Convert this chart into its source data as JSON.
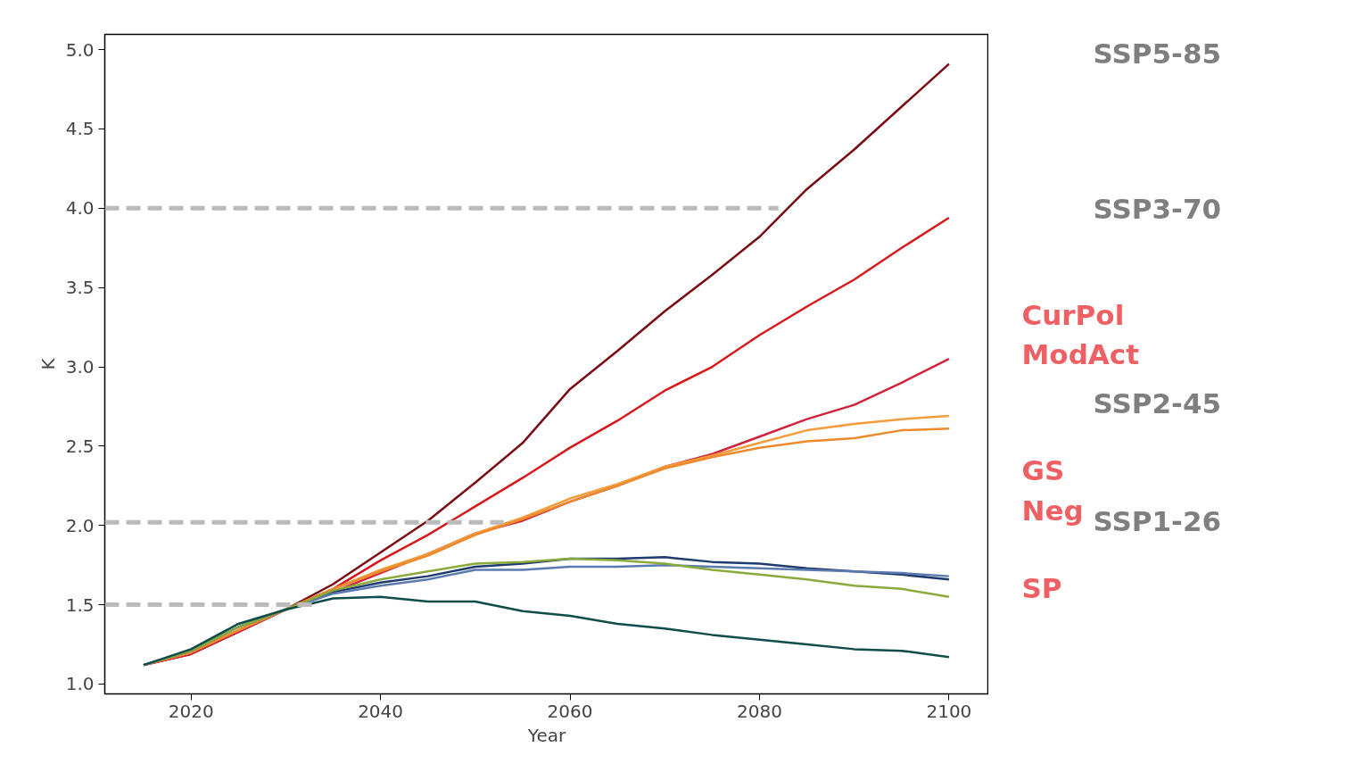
{
  "chart_data": {
    "type": "line",
    "xlabel": "Year",
    "ylabel": "K",
    "x": [
      2015,
      2020,
      2025,
      2030,
      2035,
      2040,
      2045,
      2050,
      2055,
      2060,
      2065,
      2070,
      2075,
      2080,
      2085,
      2090,
      2095,
      2100
    ],
    "series": [
      {
        "color": "#7a0c14",
        "values": [
          1.12,
          1.19,
          1.33,
          1.47,
          1.63,
          1.83,
          2.03,
          2.27,
          2.52,
          2.86,
          3.1,
          3.35,
          3.58,
          3.82,
          4.12,
          4.37,
          4.64,
          4.91
        ]
      },
      {
        "color": "#d7191c",
        "values": [
          1.12,
          1.19,
          1.33,
          1.47,
          1.6,
          1.78,
          1.94,
          2.12,
          2.3,
          2.49,
          2.66,
          2.85,
          3.0,
          3.2,
          3.38,
          3.55,
          3.75,
          3.94
        ]
      },
      {
        "color": "#d0243c",
        "values": [
          1.12,
          1.19,
          1.33,
          1.47,
          1.58,
          1.7,
          1.82,
          1.95,
          2.03,
          2.15,
          2.25,
          2.37,
          2.45,
          2.56,
          2.67,
          2.76,
          2.9,
          3.05
        ]
      },
      {
        "color": "#f39c3a",
        "values": [
          1.12,
          1.2,
          1.34,
          1.47,
          1.6,
          1.72,
          1.82,
          1.95,
          2.05,
          2.17,
          2.26,
          2.37,
          2.44,
          2.52,
          2.6,
          2.64,
          2.67,
          2.69
        ]
      },
      {
        "color": "#ee8a2e",
        "values": [
          1.12,
          1.2,
          1.34,
          1.47,
          1.6,
          1.71,
          1.81,
          1.94,
          2.04,
          2.15,
          2.25,
          2.36,
          2.43,
          2.49,
          2.53,
          2.55,
          2.6,
          2.61
        ]
      },
      {
        "color": "#1f3a6e",
        "values": [
          1.12,
          1.21,
          1.36,
          1.47,
          1.58,
          1.64,
          1.68,
          1.74,
          1.76,
          1.79,
          1.79,
          1.8,
          1.77,
          1.76,
          1.73,
          1.71,
          1.69,
          1.66
        ]
      },
      {
        "color": "#5b7bb0",
        "values": [
          1.12,
          1.21,
          1.36,
          1.47,
          1.57,
          1.62,
          1.66,
          1.72,
          1.72,
          1.74,
          1.74,
          1.75,
          1.74,
          1.73,
          1.72,
          1.71,
          1.7,
          1.68
        ]
      },
      {
        "color": "#8aab3c",
        "values": [
          1.12,
          1.21,
          1.36,
          1.47,
          1.59,
          1.66,
          1.71,
          1.76,
          1.77,
          1.79,
          1.78,
          1.76,
          1.72,
          1.69,
          1.66,
          1.62,
          1.6,
          1.55
        ]
      },
      {
        "color": "#0f4d4a",
        "values": [
          1.12,
          1.22,
          1.38,
          1.47,
          1.54,
          1.55,
          1.52,
          1.52,
          1.46,
          1.43,
          1.38,
          1.35,
          1.31,
          1.28,
          1.25,
          1.22,
          1.21,
          1.17
        ]
      },
      {
        "color": "#bbbbbb",
        "line_style": "dashed",
        "x": [
          2010.9,
          2082
        ],
        "values": [
          4.0,
          4.0
        ]
      },
      {
        "color": "#bbbbbb",
        "line_style": "dashed",
        "x": [
          2010.9,
          2053
        ],
        "values": [
          2.02,
          2.02
        ]
      },
      {
        "color": "#bbbbbb",
        "line_style": "dashed",
        "x": [
          2010.9,
          2033
        ],
        "values": [
          1.5,
          1.5
        ]
      }
    ],
    "xlim": [
      2010.9,
      2104.2
    ],
    "ylim": [
      0.938,
      5.096
    ],
    "xticks": [
      2020,
      2040,
      2060,
      2080,
      2100
    ],
    "yticks": [
      {
        "value": 1,
        "label": "1.0"
      },
      {
        "value": 1.5,
        "label": "1.5"
      },
      {
        "value": 2,
        "label": "2.0"
      },
      {
        "value": 2.5,
        "label": "2.5"
      },
      {
        "value": 3,
        "label": "3.0"
      },
      {
        "value": 3.5,
        "label": "3.5"
      },
      {
        "value": 4,
        "label": "4.0"
      },
      {
        "value": 4.5,
        "label": "4.5"
      },
      {
        "value": 5,
        "label": "5.0"
      }
    ],
    "grid": false,
    "marker": "none",
    "line_style": "solid",
    "annotations": [
      "SSP5-85",
      "SSP3-70",
      "CurPol",
      "ModAct",
      "SSP2-45",
      "GS",
      "Neg",
      "SSP1-26",
      "SP"
    ]
  }
}
